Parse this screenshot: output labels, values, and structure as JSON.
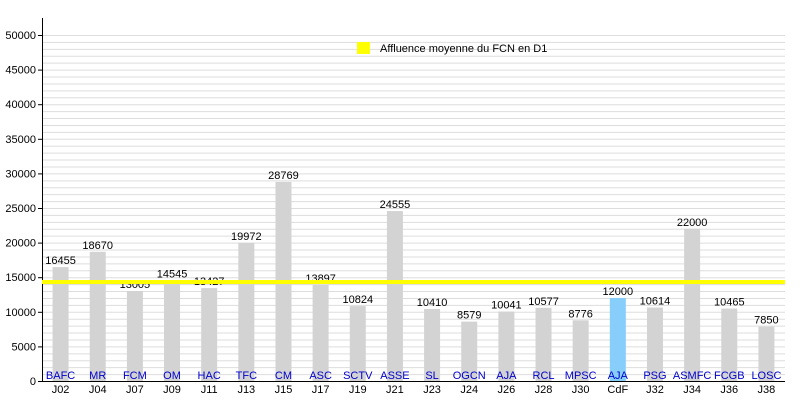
{
  "chart_data": {
    "type": "bar",
    "title": "",
    "xlabel": "",
    "ylabel": "",
    "ylim": [
      0,
      50000
    ],
    "y_ticks": [
      0,
      5000,
      10000,
      15000,
      20000,
      25000,
      30000,
      35000,
      40000,
      45000,
      50000
    ],
    "grid": "horizontal",
    "legend_position": "top-center",
    "categories": [
      "J02",
      "J04",
      "J07",
      "J09",
      "J11",
      "J13",
      "J15",
      "J17",
      "J19",
      "J21",
      "J23",
      "J24",
      "J26",
      "J28",
      "J30",
      "CdF",
      "J32",
      "J34",
      "J36",
      "J38"
    ],
    "opponents": [
      "BAFC",
      "MR",
      "FCM",
      "OM",
      "HAC",
      "TFC",
      "CM",
      "ASC",
      "SCTV",
      "ASSE",
      "SL",
      "OGCN",
      "AJA",
      "RCL",
      "MPSC",
      "AJA",
      "PSG",
      "ASMFC",
      "FCGB",
      "LOSC"
    ],
    "values": [
      16455,
      18670,
      13005,
      14545,
      13427,
      19972,
      28769,
      13897,
      10824,
      24555,
      10410,
      8579,
      10041,
      10577,
      8776,
      12000,
      10614,
      22000,
      10465,
      7850
    ],
    "highlight_index": 15,
    "average": 14300,
    "legend": [
      {
        "label": "Affluence moyenne du FCN en D1",
        "color": "#ffff00"
      }
    ],
    "colors": {
      "bar": "#d3d3d3",
      "highlight_bar": "#87cefa",
      "average_line": "#ffff00",
      "gridline": "#dddddd",
      "opponent_text": "#0000cc"
    }
  }
}
